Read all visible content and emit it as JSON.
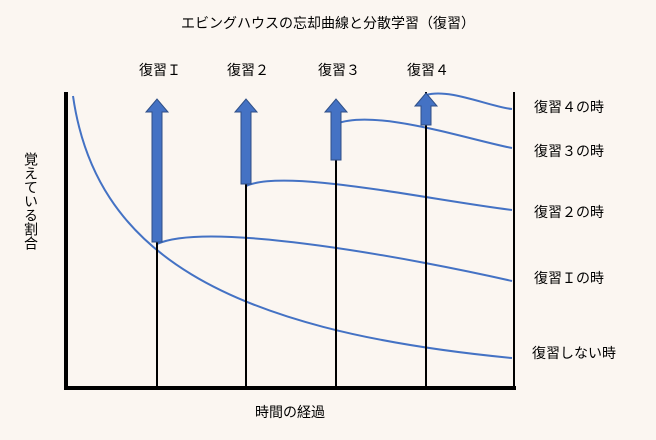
{
  "title": "エビングハウスの忘却曲線と分散学習（復習）",
  "ylabel": "覚えている割合",
  "xlabel": "時間の経過",
  "reviews": [
    {
      "label": "復習Ｉ"
    },
    {
      "label": "復習２"
    },
    {
      "label": "復習３"
    },
    {
      "label": "復習４"
    }
  ],
  "curves": [
    {
      "label": "復習しない時"
    },
    {
      "label": "復習Ｉの時"
    },
    {
      "label": "復習２の時"
    },
    {
      "label": "復習３の時"
    },
    {
      "label": "復習４の時"
    }
  ],
  "colors": {
    "background": "#fbf6f1",
    "curve": "#4472c4",
    "arrow_fill": "#4472c4",
    "arrow_stroke": "#2f4f86",
    "axis": "#000000",
    "text": "#000000"
  }
}
